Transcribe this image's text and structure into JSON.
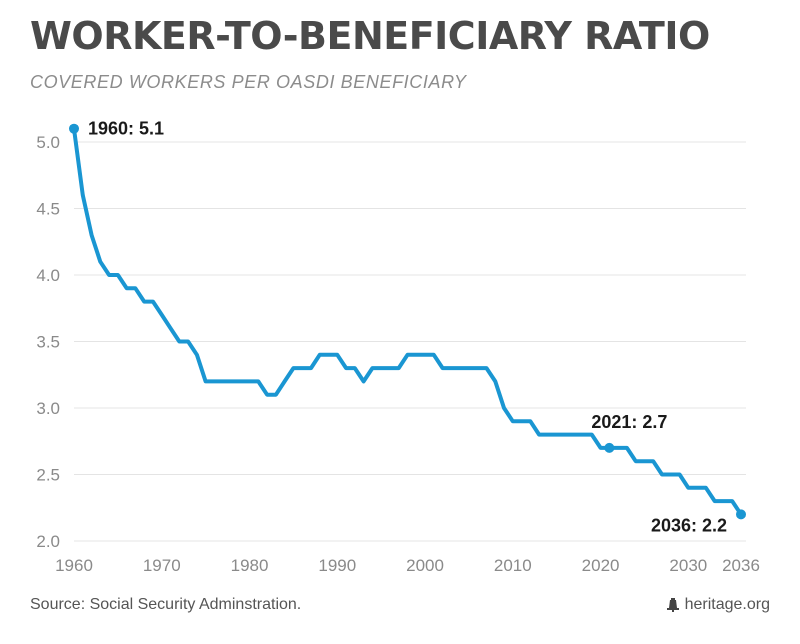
{
  "header": {
    "title": "WORKER-TO-BENEFICIARY RATIO",
    "subtitle": "COVERED WORKERS PER OASDI BENEFICIARY"
  },
  "footer": {
    "source": "Source: Social Security Adminstration.",
    "brand": "heritage.org",
    "brand_icon": "liberty-bell-icon"
  },
  "colors": {
    "line": "#1a96d2",
    "grid": "#e4e4e4",
    "tick_text": "#8a8a8a",
    "annotation_text": "#1a1a1a"
  },
  "chart_data": {
    "type": "line",
    "title": "WORKER-TO-BENEFICIARY RATIO",
    "subtitle": "COVERED WORKERS PER OASDI BENEFICIARY",
    "xlabel": "",
    "ylabel": "",
    "xlim": [
      1960,
      2036
    ],
    "ylim": [
      2.0,
      5.0
    ],
    "xticks": [
      1960,
      1970,
      1980,
      1990,
      2000,
      2010,
      2020,
      2030,
      2036
    ],
    "xtick_labels": [
      "1960",
      "1970",
      "1980",
      "1990",
      "2000",
      "2010",
      "2020",
      "2030",
      "2036"
    ],
    "yticks": [
      2.0,
      2.5,
      3.0,
      3.5,
      4.0,
      4.5,
      5.0
    ],
    "ytick_labels": [
      "2.0",
      "2.5",
      "3.0",
      "3.5",
      "4.0",
      "4.5",
      "5.0"
    ],
    "grid": true,
    "legend": "none",
    "series": [
      {
        "x": [
          1960,
          1961,
          1962,
          1963,
          1964,
          1965,
          1966,
          1967,
          1968,
          1969,
          1970,
          1971,
          1972,
          1973,
          1974,
          1975,
          1976,
          1977,
          1978,
          1979,
          1980,
          1981,
          1982,
          1983,
          1984,
          1985,
          1986,
          1987,
          1988,
          1989,
          1990,
          1991,
          1992,
          1993,
          1994,
          1995,
          1996,
          1997,
          1998,
          1999,
          2000,
          2001,
          2002,
          2003,
          2004,
          2005,
          2006,
          2007,
          2008,
          2009,
          2010,
          2011,
          2012,
          2013,
          2014,
          2015,
          2016,
          2017,
          2018,
          2019,
          2020,
          2021,
          2022,
          2023,
          2024,
          2025,
          2026,
          2027,
          2028,
          2029,
          2030,
          2031,
          2032,
          2033,
          2034,
          2035,
          2036
        ],
        "y": [
          5.1,
          4.6,
          4.3,
          4.1,
          4.0,
          4.0,
          3.9,
          3.9,
          3.8,
          3.8,
          3.7,
          3.6,
          3.5,
          3.5,
          3.4,
          3.2,
          3.2,
          3.2,
          3.2,
          3.2,
          3.2,
          3.2,
          3.1,
          3.1,
          3.2,
          3.3,
          3.3,
          3.3,
          3.4,
          3.4,
          3.4,
          3.3,
          3.3,
          3.2,
          3.3,
          3.3,
          3.3,
          3.3,
          3.4,
          3.4,
          3.4,
          3.4,
          3.3,
          3.3,
          3.3,
          3.3,
          3.3,
          3.3,
          3.2,
          3.0,
          2.9,
          2.9,
          2.9,
          2.8,
          2.8,
          2.8,
          2.8,
          2.8,
          2.8,
          2.8,
          2.7,
          2.7,
          2.7,
          2.7,
          2.6,
          2.6,
          2.6,
          2.5,
          2.5,
          2.5,
          2.4,
          2.4,
          2.4,
          2.3,
          2.3,
          2.3,
          2.2
        ]
      }
    ],
    "annotations": [
      {
        "x": 1960,
        "y": 5.1,
        "label": "1960: 5.1",
        "position": "right"
      },
      {
        "x": 2021,
        "y": 2.7,
        "label": "2021: 2.7",
        "position": "above"
      },
      {
        "x": 2036,
        "y": 2.2,
        "label": "2036: 2.2",
        "position": "left-below"
      }
    ]
  }
}
